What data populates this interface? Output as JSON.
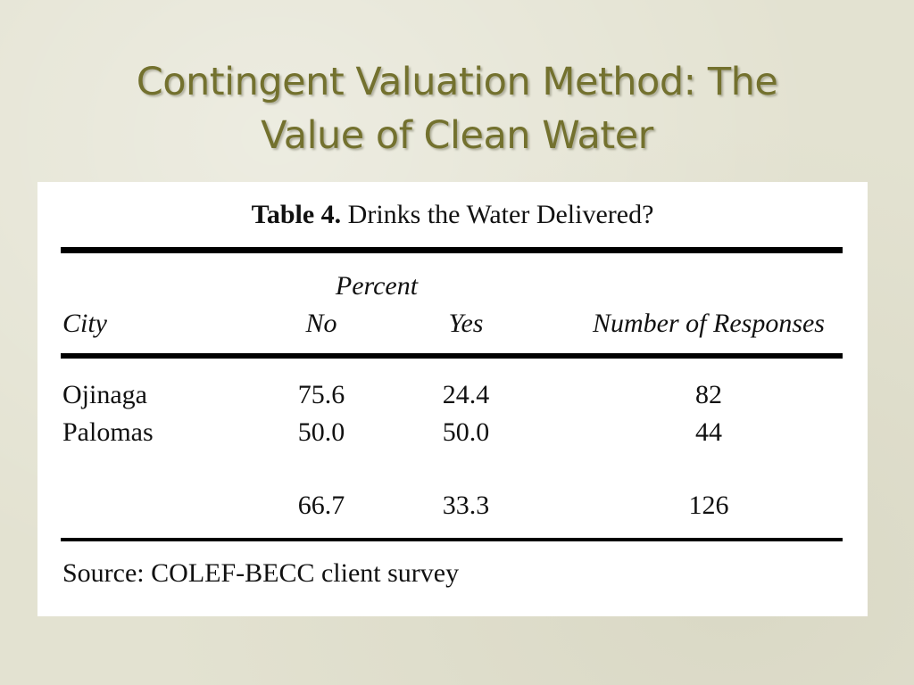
{
  "slide": {
    "title_line1": "Contingent Valuation Method: The",
    "title_line2": "Value of Clean Water"
  },
  "table": {
    "caption_label": "Table 4.",
    "caption_text": " Drinks the Water Delivered?",
    "group_header": "Percent",
    "columns": [
      "City",
      "No",
      "Yes",
      "Number of Responses"
    ],
    "rows": [
      {
        "city": "Ojinaga",
        "no": "75.6",
        "yes": "24.4",
        "responses": "82"
      },
      {
        "city": "Palomas",
        "no": "50.0",
        "yes": "50.0",
        "responses": "44"
      }
    ],
    "total": {
      "city": "",
      "no": "66.7",
      "yes": "33.3",
      "responses": "126"
    },
    "source": "Source: COLEF-BECC client survey"
  }
}
